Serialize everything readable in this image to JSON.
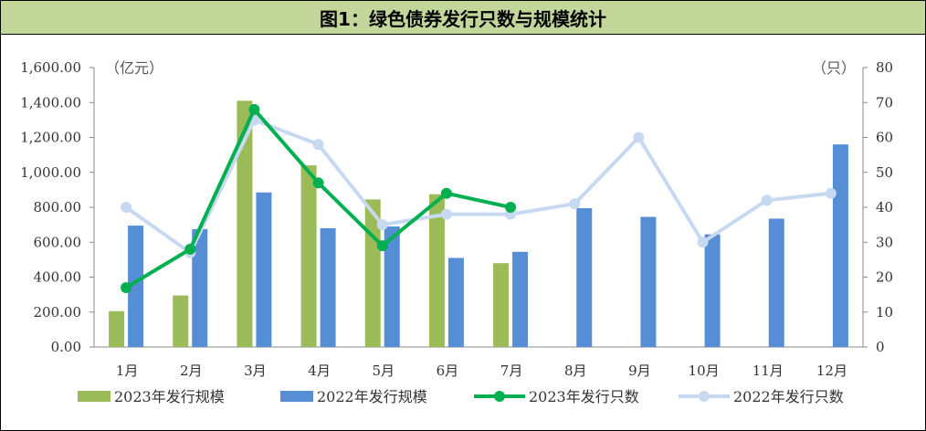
{
  "title": "图1：绿色债券发行只数与规模统计",
  "chart_data": {
    "type": "bar",
    "title": "图1：绿色债券发行只数与规模统计",
    "categories": [
      "1月",
      "2月",
      "3月",
      "4月",
      "5月",
      "6月",
      "7月",
      "8月",
      "9月",
      "10月",
      "11月",
      "12月"
    ],
    "left_axis": {
      "unit": "（亿元）",
      "ylim": [
        0,
        1600
      ],
      "ticks": [
        "0.00",
        "200.00",
        "400.00",
        "600.00",
        "800.00",
        "1,000.00",
        "1,200.00",
        "1,400.00",
        "1,600.00"
      ]
    },
    "right_axis": {
      "unit": "（只）",
      "ylim": [
        0,
        80
      ],
      "ticks": [
        "0",
        "10",
        "20",
        "30",
        "40",
        "50",
        "60",
        "70",
        "80"
      ]
    },
    "series": [
      {
        "name": "2023年发行规模",
        "kind": "bar",
        "axis": "left",
        "color": "#9bbb59",
        "values": [
          205,
          295,
          1410,
          1040,
          845,
          875,
          480,
          null,
          null,
          null,
          null,
          null
        ]
      },
      {
        "name": "2022年发行规模",
        "kind": "bar",
        "axis": "left",
        "color": "#558ed5",
        "values": [
          695,
          675,
          885,
          680,
          690,
          510,
          545,
          795,
          745,
          645,
          735,
          1160
        ]
      },
      {
        "name": "2023年发行只数",
        "kind": "line",
        "axis": "right",
        "color": "#00b050",
        "values": [
          17,
          28,
          68,
          47,
          29,
          44,
          40,
          null,
          null,
          null,
          null,
          null
        ]
      },
      {
        "name": "2022年发行只数",
        "kind": "line",
        "axis": "right",
        "color": "#c6d9f1",
        "values": [
          40,
          27,
          65,
          58,
          35,
          38,
          38,
          41,
          60,
          30,
          42,
          44
        ]
      }
    ],
    "grid": false,
    "legend": "bottom"
  }
}
